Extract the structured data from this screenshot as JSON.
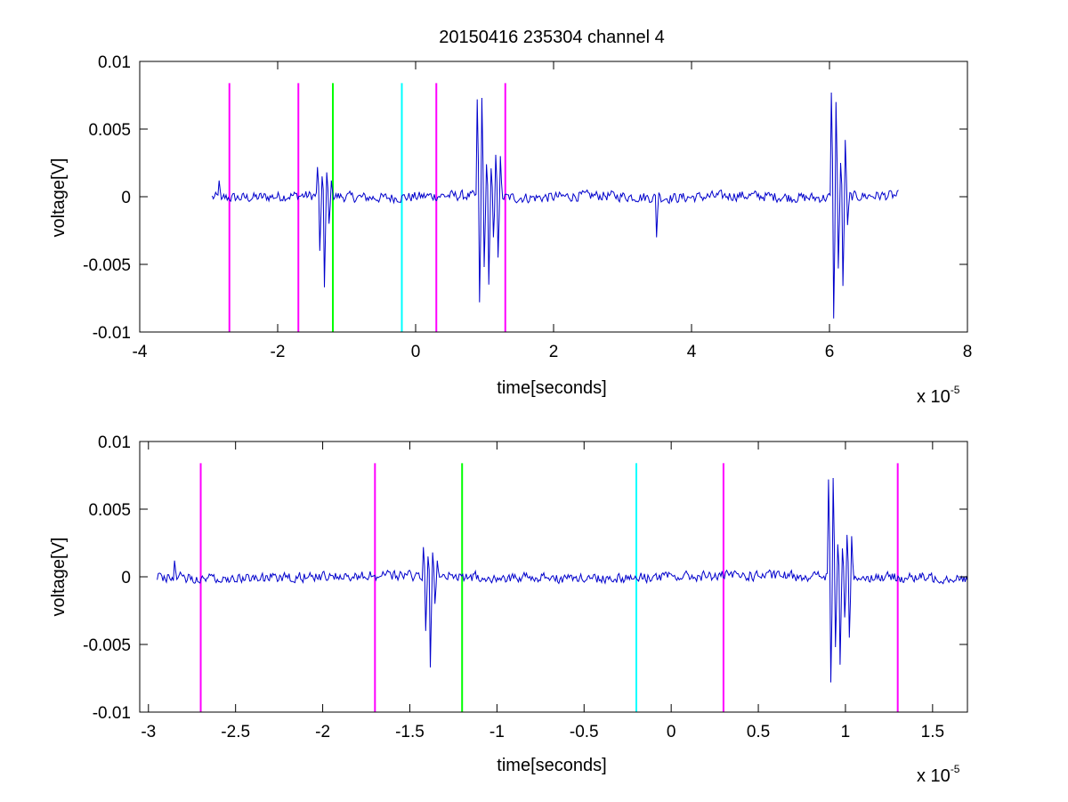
{
  "figure_title": "20150416 235304 channel 4",
  "colors": {
    "signal": "#0000cc",
    "magenta": "#ff00ff",
    "green": "#00ff00",
    "cyan": "#00ffff",
    "axis": "#000000"
  },
  "chart_data": [
    {
      "type": "line",
      "title": "20150416 235304 channel 4",
      "xlabel": "time[seconds]",
      "ylabel": "voltage[V]",
      "x_exponent_label": "x 10",
      "x_exponent": "-5",
      "xlim": [
        -4e-05,
        8e-05
      ],
      "ylim": [
        -0.01,
        0.01
      ],
      "x_ticks": [
        -4,
        -2,
        0,
        2,
        4,
        6,
        8
      ],
      "x_tick_labels": [
        "-4",
        "-2",
        "0",
        "2",
        "4",
        "6",
        "8"
      ],
      "y_ticks": [
        -0.01,
        -0.005,
        0,
        0.005,
        0.01
      ],
      "y_tick_labels": [
        "-0.01",
        "-0.005",
        "0",
        "0.005",
        "0.01"
      ],
      "grid": false,
      "markers": [
        {
          "x": -2.7e-05,
          "color": "magenta",
          "y_range": [
            -0.01,
            0.0084
          ]
        },
        {
          "x": -1.7e-05,
          "color": "magenta",
          "y_range": [
            -0.01,
            0.0084
          ]
        },
        {
          "x": -1.2e-05,
          "color": "green",
          "y_range": [
            -0.01,
            0.0084
          ]
        },
        {
          "x": -2e-06,
          "color": "cyan",
          "y_range": [
            -0.01,
            0.0084
          ]
        },
        {
          "x": 3e-06,
          "color": "magenta",
          "y_range": [
            -0.01,
            0.0084
          ]
        },
        {
          "x": 1.3e-05,
          "color": "magenta",
          "y_range": [
            -0.01,
            0.0084
          ]
        }
      ],
      "signal": {
        "x_start": -2.95e-05,
        "x_end": 7e-05,
        "baseline": 0,
        "noise": 0.00045,
        "bursts": [
          {
            "x": -2.85e-05,
            "points": [
              0.0012,
              -0.0002
            ]
          },
          {
            "x": -1.42e-05,
            "points": [
              0.0022,
              -0.004,
              0.0015,
              -0.0067,
              0.0018,
              -0.002,
              0.0012
            ]
          },
          {
            "x": 9e-06,
            "points": [
              0.0072,
              -0.0078,
              0.0073,
              -0.0052,
              0.0024,
              -0.0065,
              0.0021,
              -0.003,
              0.0031,
              -0.0045,
              0.003
            ]
          },
          {
            "x": 3.5e-05,
            "points": [
              -0.003,
              0.0003
            ]
          },
          {
            "x": 6.02e-05,
            "points": [
              0.0077,
              -0.009,
              0.007,
              -0.0053,
              0.0025,
              -0.0066,
              0.0042,
              -0.0021
            ]
          }
        ]
      }
    },
    {
      "type": "line",
      "title": "",
      "xlabel": "time[seconds]",
      "ylabel": "voltage[V]",
      "x_exponent_label": "x 10",
      "x_exponent": "-5",
      "xlim": [
        -3.05e-05,
        1.7e-05
      ],
      "ylim": [
        -0.01,
        0.01
      ],
      "x_ticks": [
        -3,
        -2.5,
        -2,
        -1.5,
        -1,
        -0.5,
        0,
        0.5,
        1,
        1.5
      ],
      "x_tick_labels": [
        "-3",
        "-2.5",
        "-2",
        "-1.5",
        "-1",
        "-0.5",
        "0",
        "0.5",
        "1",
        "1.5"
      ],
      "y_ticks": [
        -0.01,
        -0.005,
        0,
        0.005,
        0.01
      ],
      "y_tick_labels": [
        "-0.01",
        "-0.005",
        "0",
        "0.005",
        "0.01"
      ],
      "grid": false,
      "markers": [
        {
          "x": -2.7e-05,
          "color": "magenta",
          "y_range": [
            -0.01,
            0.0084
          ]
        },
        {
          "x": -1.7e-05,
          "color": "magenta",
          "y_range": [
            -0.01,
            0.0084
          ]
        },
        {
          "x": -1.2e-05,
          "color": "green",
          "y_range": [
            -0.01,
            0.0084
          ]
        },
        {
          "x": -2e-06,
          "color": "cyan",
          "y_range": [
            -0.01,
            0.0084
          ]
        },
        {
          "x": 3e-06,
          "color": "magenta",
          "y_range": [
            -0.01,
            0.0084
          ]
        },
        {
          "x": 1.3e-05,
          "color": "magenta",
          "y_range": [
            -0.01,
            0.0084
          ]
        }
      ],
      "signal": {
        "x_start": -2.95e-05,
        "x_end": 1.7e-05,
        "baseline": 0,
        "noise": 0.00045,
        "bursts": [
          {
            "x": -2.85e-05,
            "points": [
              0.0012,
              -0.0002
            ]
          },
          {
            "x": -1.42e-05,
            "points": [
              0.0022,
              -0.004,
              0.0015,
              -0.0067,
              0.0018,
              -0.002,
              0.0012
            ]
          },
          {
            "x": 9e-06,
            "points": [
              0.0072,
              -0.0078,
              0.0073,
              -0.0052,
              0.0024,
              -0.0065,
              0.0021,
              -0.003,
              0.0031,
              -0.0045,
              0.003
            ]
          }
        ]
      }
    }
  ]
}
